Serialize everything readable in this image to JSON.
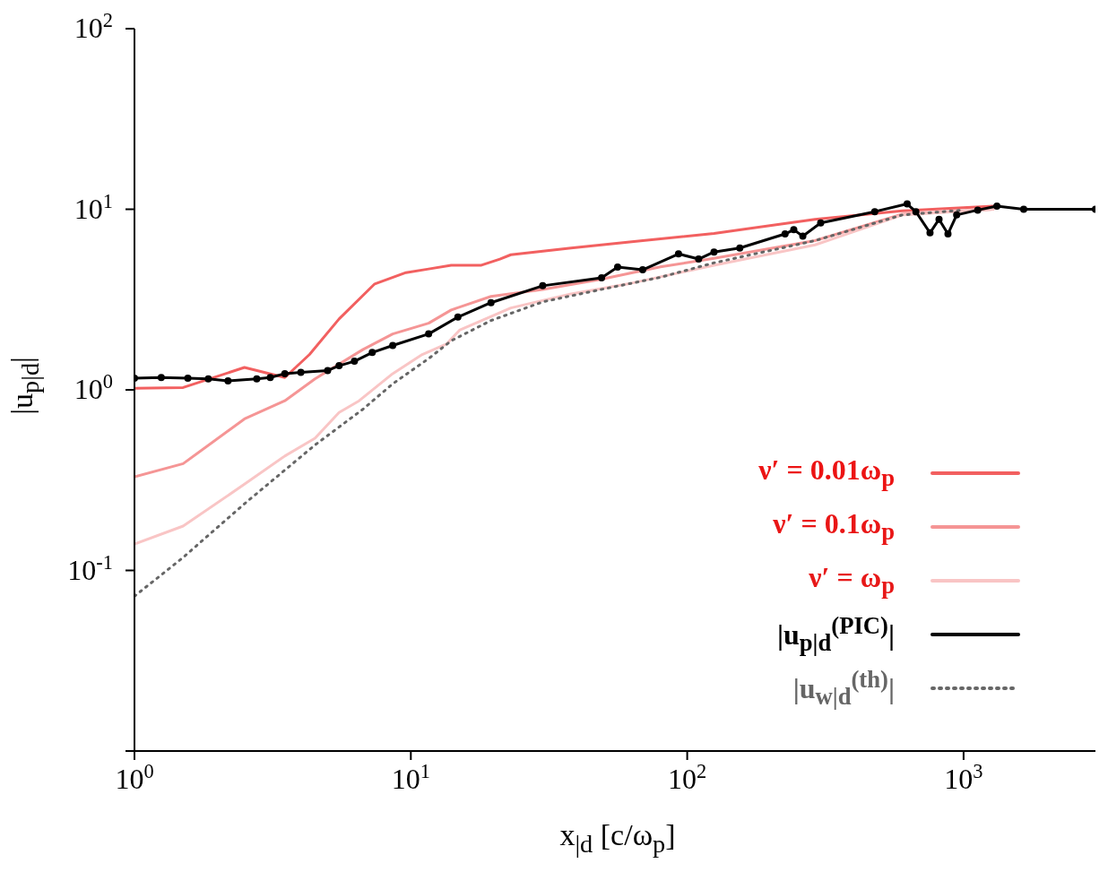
{
  "chart_data": {
    "type": "line",
    "xlabel": "x$_{|d}$ [c/ω$_{p}$]",
    "ylabel": "|u$_{p|d}$|",
    "log": "xy",
    "legend": "bottom right",
    "xlim": [
      1,
      3000
    ],
    "xticks": [
      {
        "value": 1,
        "label": "10$^{0}$"
      },
      {
        "value": 10,
        "label": "10$^{1}$"
      },
      {
        "value": 100,
        "label": "10$^{2}$"
      },
      {
        "value": 1000,
        "label": "10$^{3}$"
      }
    ],
    "ylim": [
      0.01,
      100
    ],
    "yticks": [
      {
        "value": 0.01,
        "label": null
      },
      {
        "value": 0.1,
        "label": "10$^{-1}$"
      },
      {
        "value": 1,
        "label": "10$^{0}$"
      },
      {
        "value": 10,
        "label": "10$^{1}$"
      },
      {
        "value": 100,
        "label": "10$^{2}$"
      }
    ],
    "series": [
      {
        "name": "ν′ = 0.01ω$_{p}$",
        "color": "#f26060",
        "x": [
          1,
          1.5,
          2.5,
          3.5,
          4.3,
          5.5,
          7.4,
          9.6,
          11.6,
          14,
          18,
          21,
          23,
          38,
          63,
          125,
          290,
          600,
          1280
        ],
        "values": [
          1.02,
          1.03,
          1.33,
          1.17,
          1.57,
          2.47,
          3.86,
          4.46,
          4.67,
          4.9,
          4.9,
          5.3,
          5.6,
          6.1,
          6.6,
          7.35,
          8.8,
          9.8,
          10.4
        ]
      },
      {
        "name": "ν′ = 0.1ω$_{p}$",
        "color": "#f59595",
        "x": [
          1,
          1.5,
          2.5,
          3.5,
          4.5,
          6.7,
          8.6,
          11.6,
          14,
          19.5,
          30,
          49,
          80,
          125,
          290,
          600,
          1280
        ],
        "values": [
          0.33,
          0.39,
          0.69,
          0.87,
          1.15,
          1.67,
          2.04,
          2.34,
          2.77,
          3.29,
          3.6,
          4.1,
          4.8,
          5.35,
          6.7,
          9.4,
          10
        ]
      },
      {
        "name": "ν′ = ω$_{p}$",
        "color": "#f9c5c5",
        "x": [
          1,
          1.5,
          2.5,
          3.5,
          4.5,
          5.5,
          6.5,
          8.6,
          11,
          13.5,
          15,
          23,
          38,
          63,
          125,
          290,
          600,
          1280
        ],
        "values": [
          0.14,
          0.176,
          0.3,
          0.43,
          0.54,
          0.75,
          0.87,
          1.23,
          1.57,
          1.8,
          2.14,
          2.84,
          3.4,
          3.9,
          4.9,
          6.35,
          9.3,
          10
        ]
      },
      {
        "name": "|u$_{p|d}$$^{(PIC)}$|",
        "color": "#000000",
        "marker": "circle",
        "x": [
          1,
          1.25,
          1.56,
          1.85,
          2.18,
          2.77,
          3.1,
          3.5,
          4,
          5,
          5.5,
          6.25,
          7.25,
          8.6,
          11.6,
          14.8,
          19.5,
          30,
          49,
          56,
          69,
          93,
          110,
          125,
          155,
          226,
          243,
          262,
          304,
          477,
          625,
          672,
          756,
          815,
          878,
          944,
          1125,
          1320,
          1650,
          3000
        ],
        "values": [
          1.16,
          1.17,
          1.16,
          1.15,
          1.12,
          1.15,
          1.17,
          1.23,
          1.25,
          1.28,
          1.36,
          1.44,
          1.61,
          1.76,
          2.04,
          2.53,
          3.04,
          3.77,
          4.17,
          4.78,
          4.62,
          5.66,
          5.3,
          5.8,
          6.1,
          7.3,
          7.7,
          7.1,
          8.4,
          9.7,
          10.7,
          9.7,
          7.4,
          8.8,
          7.3,
          9.3,
          9.9,
          10.4,
          10,
          10
        ]
      },
      {
        "name": "|u$_{w|d}$$^{(th)}$|",
        "color": "#666666",
        "line_style": "dotted",
        "x": [
          1,
          1.5,
          2.5,
          4.5,
          6.7,
          8.6,
          11.6,
          14,
          19.5,
          30,
          49,
          80,
          125,
          290,
          600,
          1000
        ],
        "values": [
          0.072,
          0.118,
          0.234,
          0.495,
          0.78,
          1.08,
          1.49,
          1.87,
          2.42,
          3.07,
          3.6,
          4.2,
          5.05,
          6.7,
          9.3,
          9.9
        ]
      }
    ]
  }
}
